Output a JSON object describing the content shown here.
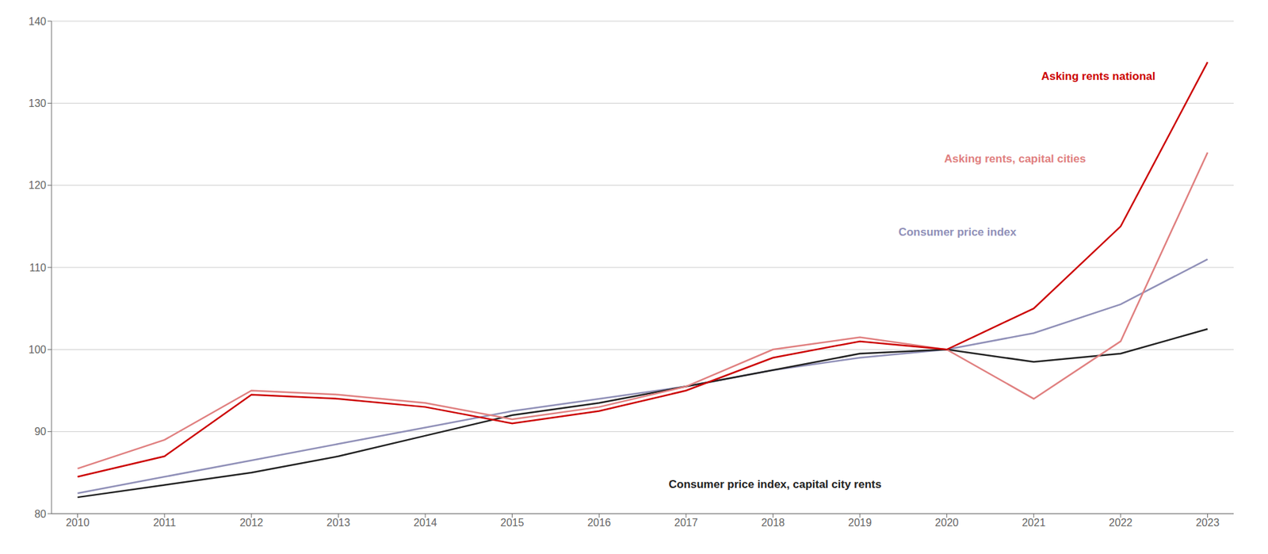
{
  "chart_data": {
    "type": "line",
    "x": [
      2010,
      2011,
      2012,
      2013,
      2014,
      2015,
      2016,
      2017,
      2018,
      2019,
      2020,
      2021,
      2022,
      2023
    ],
    "series": [
      {
        "color": "#9090b8",
        "values": [
          82.5,
          84.5,
          86.5,
          88.5,
          90.5,
          92.5,
          94.0,
          95.5,
          97.5,
          99.0,
          100.0,
          102.0,
          105.5,
          111.0
        ]
      },
      {
        "color": "#222222",
        "values": [
          82.0,
          83.5,
          85.0,
          87.0,
          89.5,
          92.0,
          93.5,
          95.5,
          97.5,
          99.5,
          100.0,
          98.5,
          99.5,
          102.5
        ]
      },
      {
        "color": "#e08080",
        "values": [
          85.5,
          89.0,
          95.0,
          94.5,
          93.5,
          91.5,
          93.0,
          95.5,
          100.0,
          101.5,
          100.0,
          94.0,
          101.0,
          124.0
        ]
      },
      {
        "color": "#cc0000",
        "values": [
          84.5,
          87.0,
          94.5,
          94.0,
          93.0,
          91.0,
          92.5,
          95.0,
          99.0,
          101.0,
          100.0,
          105.0,
          115.0,
          135.0
        ]
      }
    ],
    "annotations": [
      {
        "text": "Asking rents national",
        "x": 2022.4,
        "y": 132.5,
        "color": "#cc0000"
      },
      {
        "text": "Asking rents, capital cities",
        "x": 2021.6,
        "y": 122.5,
        "color": "#e08080"
      },
      {
        "text": "Consumer price index",
        "x": 2020.8,
        "y": 113.5,
        "color": "#9090b8"
      },
      {
        "text": "Consumer price index, capital city rents",
        "x": 2016.8,
        "y": 84.5,
        "color": "#222222"
      }
    ],
    "xlim": [
      2009.7,
      2023.3
    ],
    "xticks": [
      2010,
      2011,
      2012,
      2013,
      2014,
      2015,
      2016,
      2017,
      2018,
      2019,
      2020,
      2021,
      2022,
      2023
    ],
    "ylim": [
      80,
      140
    ],
    "yticks": [
      80,
      90,
      100,
      110,
      120,
      130,
      140
    ],
    "grid": true
  }
}
